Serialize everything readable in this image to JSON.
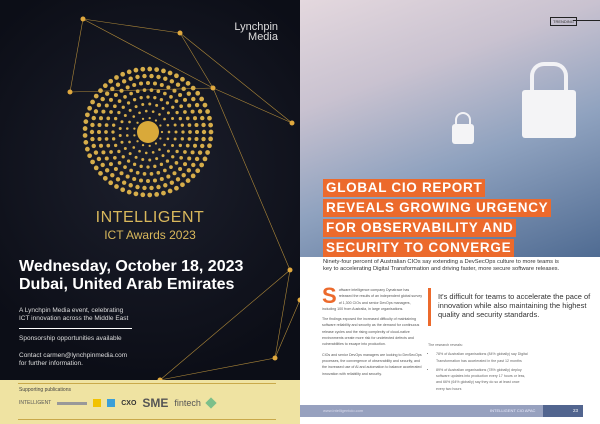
{
  "left_page": {
    "logo": {
      "line1": "Lynchpin",
      "line2": "Media"
    },
    "event_title": "INTELLIGENT",
    "event_subtitle": "ICT Awards 2023",
    "date": "Wednesday, October 18, 2023",
    "location": "Dubai, United Arab Emirates",
    "description_line1": "A Lynchpin Media event, celebrating",
    "description_line2": "ICT innovation across the Middle East",
    "sponsorship": "Sponsorship opportunities available",
    "contact_line1": "Contact carmen@lynchpinmedia.com",
    "contact_line2": "for further information.",
    "supporting_label": "Supporting publications",
    "publications": [
      "INTELLIGENT",
      "CXO",
      "SME",
      "fintech"
    ],
    "colors": {
      "background": "#0c0e17",
      "gold": "#d9b85c",
      "band": "#efe3a2"
    }
  },
  "right_page": {
    "section_tag": "TRENDING",
    "headline": [
      "GLOBAL CIO REPORT",
      "REVEALS GROWING URGENCY",
      "FOR OBSERVABILITY AND",
      "SECURITY TO CONVERGE"
    ],
    "standfirst": "Ninety-four percent of Australian CIOs say extending a DevSecOps culture to more teams is key to accelerating Digital Transformation and driving faster, more secure software releases.",
    "drop_cap": "S",
    "body": [
      "oftware intelligence company Dynatrace has released the results of an independent global survey of 1,300 CIOs and senior DevOps managers, including 100 from Australia, in large organisations.",
      "The findings exposed the increased difficulty of maintaining software reliability and security as the demand for continuous release cycles and the rising complexity of cloud-native environments create more risk for undetected defects and vulnerabilities to escape into production.",
      "CIOs and senior DevOps managers are looking to DevSecOps processes, the convergence of observability and security, and the increased use of AI and automation to balance accelerated innovation with reliability and security."
    ],
    "pull_quote": "It's difficult for teams to accelerate the pace of innovation while also maintaining the highest quality and security standards.",
    "research_intro": "The research reveals:",
    "bullets": [
      "78% of Australian organisations (84% globally) say Digital Transformation has accelerated in the past 12 months",
      "89% of Australian organisations (78% globally) deploy software updates into production every 17 hours or less, and 66% (64% globally) say they do so at least once every two hours"
    ],
    "footer_url": "www.intelligentcio.com",
    "footer_publication": "INTELLIGENT CIO APAC",
    "page_number": "23",
    "colors": {
      "accent": "#ec6a2c",
      "footer": "#97a1bf",
      "footer_dark": "#52658f"
    }
  }
}
